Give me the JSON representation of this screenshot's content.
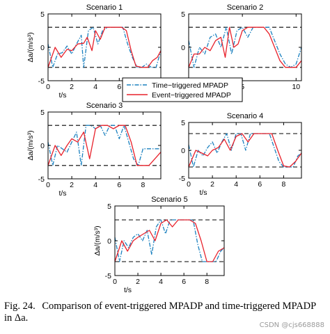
{
  "caption": {
    "label": "Fig. 24.",
    "text": "Comparison of event-triggered MPADP and time-triggered MPADP in Δa.",
    "delta_var": "Δa"
  },
  "watermark": "CSDN @cjs668888",
  "legend": {
    "placement": "center, between top row of subplots",
    "entries": [
      {
        "label": "Time−triggered MPADP",
        "style": "dash-dot",
        "color": "#1a80bf"
      },
      {
        "label": "Event−triggered MPADP",
        "style": "solid",
        "color": "#e8202a"
      }
    ]
  },
  "chart_data": [
    {
      "type": "line",
      "title": "Scenario 1",
      "xlabel": "t/s",
      "ylabel": "Δa/(m/s³)",
      "xlim": [
        0,
        9.5
      ],
      "ylim": [
        -5,
        5
      ],
      "xticks": [
        0,
        2,
        4,
        6
      ],
      "yticks": [
        -5,
        0,
        5
      ],
      "reference_lines": [
        3,
        -3
      ],
      "series": [
        {
          "name": "Time−triggered MPADP",
          "color": "#1a80bf",
          "style": "dash-dot",
          "x": [
            0,
            0.4,
            0.8,
            1.2,
            1.6,
            2.0,
            2.4,
            2.8,
            3.0,
            3.4,
            3.8,
            4.2,
            4.6,
            5.0,
            5.4,
            5.8,
            6.3,
            6.7,
            7.1,
            7.5,
            7.9,
            8.3,
            8.7,
            9.1,
            9.5
          ],
          "y": [
            0.5,
            -3,
            -1,
            -0.8,
            0.2,
            -1,
            0.5,
            1.8,
            -3,
            2.5,
            3,
            0.5,
            2.5,
            3,
            3,
            3,
            3,
            0.5,
            -1.5,
            -3,
            -3,
            -2.5,
            -3,
            -3,
            -0.5
          ]
        },
        {
          "name": "Event−triggered MPADP",
          "color": "#e8202a",
          "style": "solid",
          "x": [
            0,
            0.6,
            1.1,
            1.6,
            2.0,
            2.5,
            3.0,
            3.3,
            3.7,
            4.0,
            4.4,
            4.8,
            5.2,
            5.7,
            6.2,
            6.6,
            7.0,
            7.4,
            7.9,
            8.4,
            8.8,
            9.2,
            9.5
          ],
          "y": [
            -3,
            0,
            -1.5,
            -0.3,
            -0.5,
            0.5,
            0.6,
            1.5,
            -0.5,
            2.5,
            1.2,
            3,
            3,
            3,
            3,
            2.5,
            -0.5,
            -2.8,
            -3,
            -3,
            -2,
            -1.5,
            -0.5
          ]
        }
      ]
    },
    {
      "type": "line",
      "title": "Scenario 2",
      "xlabel": "t/s",
      "ylabel": "",
      "xlim": [
        0,
        10.5
      ],
      "ylim": [
        -5,
        5
      ],
      "xticks": [
        0,
        5,
        10
      ],
      "yticks": [
        -5,
        0,
        5
      ],
      "reference_lines": [
        3,
        -3
      ],
      "series": [
        {
          "name": "Time−triggered MPADP",
          "color": "#1a80bf",
          "style": "dash-dot",
          "x": [
            0,
            0.5,
            1.0,
            1.5,
            2.0,
            2.5,
            3.0,
            3.5,
            4.0,
            4.5,
            5.0,
            5.5,
            6.0,
            6.5,
            7.0,
            7.5,
            8.0,
            8.5,
            9.0,
            9.5,
            10.0,
            10.5
          ],
          "y": [
            1,
            -3,
            0,
            -1,
            1.5,
            2,
            0,
            3,
            -1,
            2.5,
            3,
            1.5,
            3,
            3,
            3,
            3,
            1,
            -1,
            -2.5,
            -3,
            -2.5,
            0
          ]
        },
        {
          "name": "Event−triggered MPADP",
          "color": "#e8202a",
          "style": "solid",
          "x": [
            0,
            0.5,
            1.0,
            1.5,
            2.0,
            2.5,
            3.0,
            3.4,
            3.8,
            4.2,
            4.6,
            5.0,
            5.5,
            6.0,
            6.5,
            7.0,
            7.5,
            8.0,
            8.5,
            9.0,
            9.5,
            10.0,
            10.5
          ],
          "y": [
            -3,
            -1,
            -1,
            0,
            -0.5,
            1,
            1.5,
            -1.5,
            3,
            0,
            0.5,
            2.5,
            3,
            3,
            3,
            3,
            2,
            0,
            -2,
            -3,
            -3,
            -3,
            -2
          ]
        }
      ]
    },
    {
      "type": "line",
      "title": "Scenario 3",
      "xlabel": "t/s",
      "ylabel": "Δa/(m/s³)",
      "xlim": [
        0,
        9.5
      ],
      "ylim": [
        -5,
        5
      ],
      "xticks": [
        0,
        2,
        4,
        6,
        8
      ],
      "yticks": [
        -5,
        0,
        5
      ],
      "reference_lines": [
        3,
        -3
      ],
      "series": [
        {
          "name": "Time−triggered MPADP",
          "color": "#1a80bf",
          "style": "dash-dot",
          "x": [
            0,
            0.4,
            0.8,
            1.2,
            1.6,
            2.0,
            2.4,
            2.8,
            3.2,
            3.6,
            4.0,
            4.4,
            4.8,
            5.2,
            5.6,
            6.0,
            6.4,
            6.8,
            7.2,
            7.6,
            8.0,
            8.4,
            8.8,
            9.2,
            9.5
          ],
          "y": [
            0.5,
            -3,
            0,
            -0.5,
            -1,
            0.5,
            2,
            -3,
            3,
            3,
            2.5,
            3,
            1.5,
            3,
            3,
            1,
            3,
            0.5,
            -2,
            -3,
            -0.5,
            -0.5,
            -0.5,
            -0.5,
            -0.5
          ]
        },
        {
          "name": "Event−triggered MPADP",
          "color": "#e8202a",
          "style": "solid",
          "x": [
            0,
            0.6,
            1.1,
            1.6,
            2.0,
            2.5,
            3.0,
            3.5,
            4.0,
            4.5,
            5.0,
            5.5,
            6.0,
            6.5,
            7.0,
            7.5,
            8.0,
            8.5,
            9.0,
            9.5
          ],
          "y": [
            -3,
            0,
            -1.5,
            0,
            1,
            0.5,
            2,
            -2,
            2.5,
            3,
            3,
            2.5,
            3,
            3,
            0.5,
            -3,
            -3,
            -3,
            -2,
            -1
          ]
        }
      ]
    },
    {
      "type": "line",
      "title": "Scenario 4",
      "xlabel": "t/s",
      "ylabel": "",
      "xlim": [
        0,
        9.5
      ],
      "ylim": [
        -5,
        5
      ],
      "xticks": [
        0,
        2,
        4,
        6,
        8
      ],
      "yticks": [
        -5,
        0,
        5
      ],
      "reference_lines": [
        3,
        -3
      ],
      "series": [
        {
          "name": "Time−triggered MPADP",
          "color": "#1a80bf",
          "style": "dash-dot",
          "x": [
            0,
            0.4,
            0.8,
            1.2,
            1.6,
            2.0,
            2.4,
            2.8,
            3.2,
            3.6,
            4.0,
            4.4,
            4.8,
            5.2,
            5.6,
            6.0,
            6.4,
            6.8,
            7.2,
            7.6,
            8.0,
            8.4,
            8.8,
            9.2,
            9.5
          ],
          "y": [
            1,
            -3,
            0,
            -1,
            0.5,
            1.5,
            -0.5,
            1.5,
            3,
            0,
            3,
            3,
            0,
            3,
            3,
            3,
            3,
            3,
            0.5,
            -2,
            -3,
            -3,
            -3,
            -1,
            -0.5
          ]
        },
        {
          "name": "Event−triggered MPADP",
          "color": "#e8202a",
          "style": "solid",
          "x": [
            0,
            0.6,
            1.1,
            1.6,
            2.0,
            2.5,
            3.0,
            3.5,
            4.0,
            4.5,
            5.0,
            5.5,
            6.0,
            6.5,
            7.0,
            7.5,
            8.0,
            8.5,
            9.0,
            9.5
          ],
          "y": [
            -3,
            0,
            -0.5,
            -1,
            0,
            0.5,
            2,
            0,
            2.5,
            3,
            1.5,
            3,
            3,
            3,
            3,
            0,
            -2.8,
            -3,
            -2,
            -0.5
          ]
        }
      ]
    },
    {
      "type": "line",
      "title": "Scenario 5",
      "xlabel": "t/s",
      "ylabel": "Δa/(m/s³)",
      "xlim": [
        0,
        9.5
      ],
      "ylim": [
        -5,
        5
      ],
      "xticks": [
        0,
        2,
        4,
        6,
        8
      ],
      "yticks": [
        -5,
        0,
        5
      ],
      "reference_lines": [
        3,
        -3
      ],
      "series": [
        {
          "name": "Time−triggered MPADP",
          "color": "#1a80bf",
          "style": "dash-dot",
          "x": [
            0,
            0.4,
            0.8,
            1.2,
            1.6,
            2.0,
            2.4,
            2.8,
            3.2,
            3.6,
            4.0,
            4.4,
            4.8,
            5.2,
            5.6,
            6.0,
            6.4,
            6.8,
            7.2,
            7.6,
            8.0,
            8.4,
            8.8,
            9.2,
            9.5
          ],
          "y": [
            0.5,
            -3,
            0,
            -1,
            0.5,
            1,
            0,
            1.5,
            -2,
            2,
            3,
            1,
            3,
            3,
            3,
            3,
            3,
            3,
            -0.5,
            -3,
            -3,
            -3,
            -3,
            -1.5,
            -1
          ]
        },
        {
          "name": "Event−triggered MPADP",
          "color": "#e8202a",
          "style": "solid",
          "x": [
            0,
            0.6,
            1.1,
            1.6,
            2.0,
            2.5,
            3.0,
            3.5,
            4.0,
            4.5,
            5.0,
            5.5,
            6.0,
            6.5,
            7.0,
            7.5,
            8.0,
            8.5,
            9.0,
            9.5
          ],
          "y": [
            -3,
            0,
            -1.5,
            0,
            0.5,
            1,
            1.5,
            0,
            2.5,
            3,
            2,
            3,
            3,
            3,
            2.5,
            0,
            -3,
            -3,
            -1.5,
            -1
          ]
        }
      ]
    }
  ]
}
